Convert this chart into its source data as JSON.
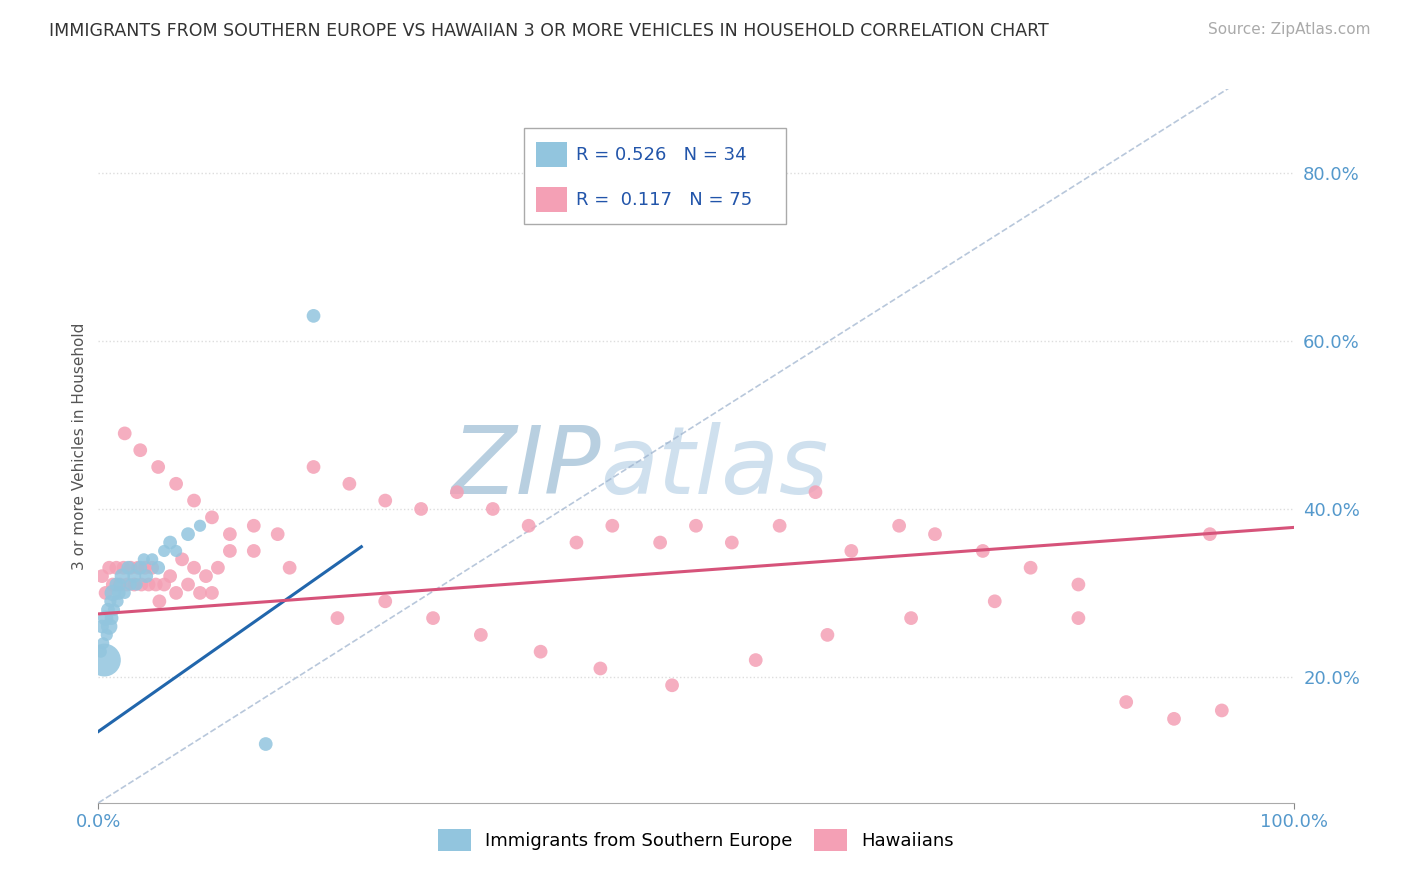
{
  "title": "IMMIGRANTS FROM SOUTHERN EUROPE VS HAWAIIAN 3 OR MORE VEHICLES IN HOUSEHOLD CORRELATION CHART",
  "source": "Source: ZipAtlas.com",
  "ylabel": "3 or more Vehicles in Household",
  "xlim": [
    0.0,
    1.0
  ],
  "ylim": [
    0.05,
    0.9
  ],
  "y_ticks_right": [
    0.2,
    0.4,
    0.6,
    0.8
  ],
  "y_tick_labels_right": [
    "20.0%",
    "40.0%",
    "60.0%",
    "80.0%"
  ],
  "r_blue": 0.526,
  "n_blue": 34,
  "r_pink": 0.117,
  "n_pink": 75,
  "blue_color": "#92c5de",
  "pink_color": "#f4a0b5",
  "blue_line_color": "#2166ac",
  "pink_line_color": "#d6537a",
  "ref_line_color": "#9ab0cc",
  "watermark_color": "#d0dce8",
  "blue_line_x0": 0.0,
  "blue_line_y0": 0.135,
  "blue_line_x1": 0.22,
  "blue_line_y1": 0.355,
  "pink_line_x0": 0.0,
  "pink_line_y0": 0.275,
  "pink_line_x1": 1.0,
  "pink_line_y1": 0.378,
  "blue_scatter_x": [
    0.002,
    0.003,
    0.004,
    0.005,
    0.006,
    0.007,
    0.008,
    0.009,
    0.01,
    0.011,
    0.012,
    0.013,
    0.015,
    0.016,
    0.017,
    0.018,
    0.02,
    0.022,
    0.025,
    0.027,
    0.03,
    0.032,
    0.035,
    0.038,
    0.04,
    0.045,
    0.05,
    0.055,
    0.06,
    0.065,
    0.075,
    0.085,
    0.14,
    0.18
  ],
  "blue_scatter_y": [
    0.23,
    0.26,
    0.24,
    0.22,
    0.27,
    0.25,
    0.28,
    0.26,
    0.29,
    0.27,
    0.3,
    0.28,
    0.31,
    0.29,
    0.3,
    0.31,
    0.32,
    0.3,
    0.33,
    0.31,
    0.32,
    0.31,
    0.33,
    0.34,
    0.32,
    0.34,
    0.33,
    0.35,
    0.36,
    0.35,
    0.37,
    0.38,
    0.12,
    0.63
  ],
  "blue_scatter_s": [
    22,
    28,
    22,
    160,
    35,
    22,
    28,
    40,
    22,
    28,
    40,
    22,
    28,
    22,
    28,
    22,
    35,
    22,
    28,
    22,
    28,
    22,
    28,
    22,
    28,
    22,
    28,
    22,
    28,
    22,
    28,
    22,
    28,
    28
  ],
  "pink_scatter_x": [
    0.003,
    0.006,
    0.009,
    0.012,
    0.015,
    0.018,
    0.021,
    0.024,
    0.027,
    0.03,
    0.033,
    0.036,
    0.039,
    0.042,
    0.045,
    0.048,
    0.051,
    0.055,
    0.06,
    0.065,
    0.07,
    0.075,
    0.08,
    0.085,
    0.09,
    0.095,
    0.1,
    0.11,
    0.13,
    0.15,
    0.18,
    0.21,
    0.24,
    0.27,
    0.3,
    0.33,
    0.36,
    0.4,
    0.43,
    0.47,
    0.5,
    0.53,
    0.57,
    0.6,
    0.63,
    0.67,
    0.7,
    0.74,
    0.78,
    0.82,
    0.86,
    0.022,
    0.035,
    0.05,
    0.065,
    0.08,
    0.095,
    0.11,
    0.13,
    0.16,
    0.2,
    0.24,
    0.28,
    0.32,
    0.37,
    0.42,
    0.48,
    0.55,
    0.61,
    0.68,
    0.75,
    0.82,
    0.9,
    0.93,
    0.94
  ],
  "pink_scatter_y": [
    0.32,
    0.3,
    0.33,
    0.31,
    0.33,
    0.31,
    0.33,
    0.31,
    0.33,
    0.31,
    0.33,
    0.31,
    0.33,
    0.31,
    0.33,
    0.31,
    0.29,
    0.31,
    0.32,
    0.3,
    0.34,
    0.31,
    0.33,
    0.3,
    0.32,
    0.3,
    0.33,
    0.35,
    0.38,
    0.37,
    0.45,
    0.43,
    0.41,
    0.4,
    0.42,
    0.4,
    0.38,
    0.36,
    0.38,
    0.36,
    0.38,
    0.36,
    0.38,
    0.42,
    0.35,
    0.38,
    0.37,
    0.35,
    0.33,
    0.31,
    0.17,
    0.49,
    0.47,
    0.45,
    0.43,
    0.41,
    0.39,
    0.37,
    0.35,
    0.33,
    0.27,
    0.29,
    0.27,
    0.25,
    0.23,
    0.21,
    0.19,
    0.22,
    0.25,
    0.27,
    0.29,
    0.27,
    0.15,
    0.37,
    0.16
  ],
  "pink_scatter_s": [
    28,
    28,
    28,
    28,
    28,
    28,
    28,
    28,
    28,
    28,
    28,
    28,
    28,
    28,
    28,
    28,
    28,
    28,
    28,
    28,
    28,
    28,
    28,
    28,
    28,
    28,
    28,
    28,
    28,
    28,
    28,
    28,
    28,
    28,
    28,
    28,
    28,
    28,
    28,
    28,
    28,
    28,
    28,
    28,
    28,
    28,
    28,
    28,
    28,
    28,
    28,
    28,
    28,
    28,
    28,
    28,
    28,
    28,
    28,
    28,
    28,
    28,
    28,
    28,
    28,
    28,
    28,
    28,
    28,
    28,
    28,
    28,
    28,
    28,
    28
  ]
}
